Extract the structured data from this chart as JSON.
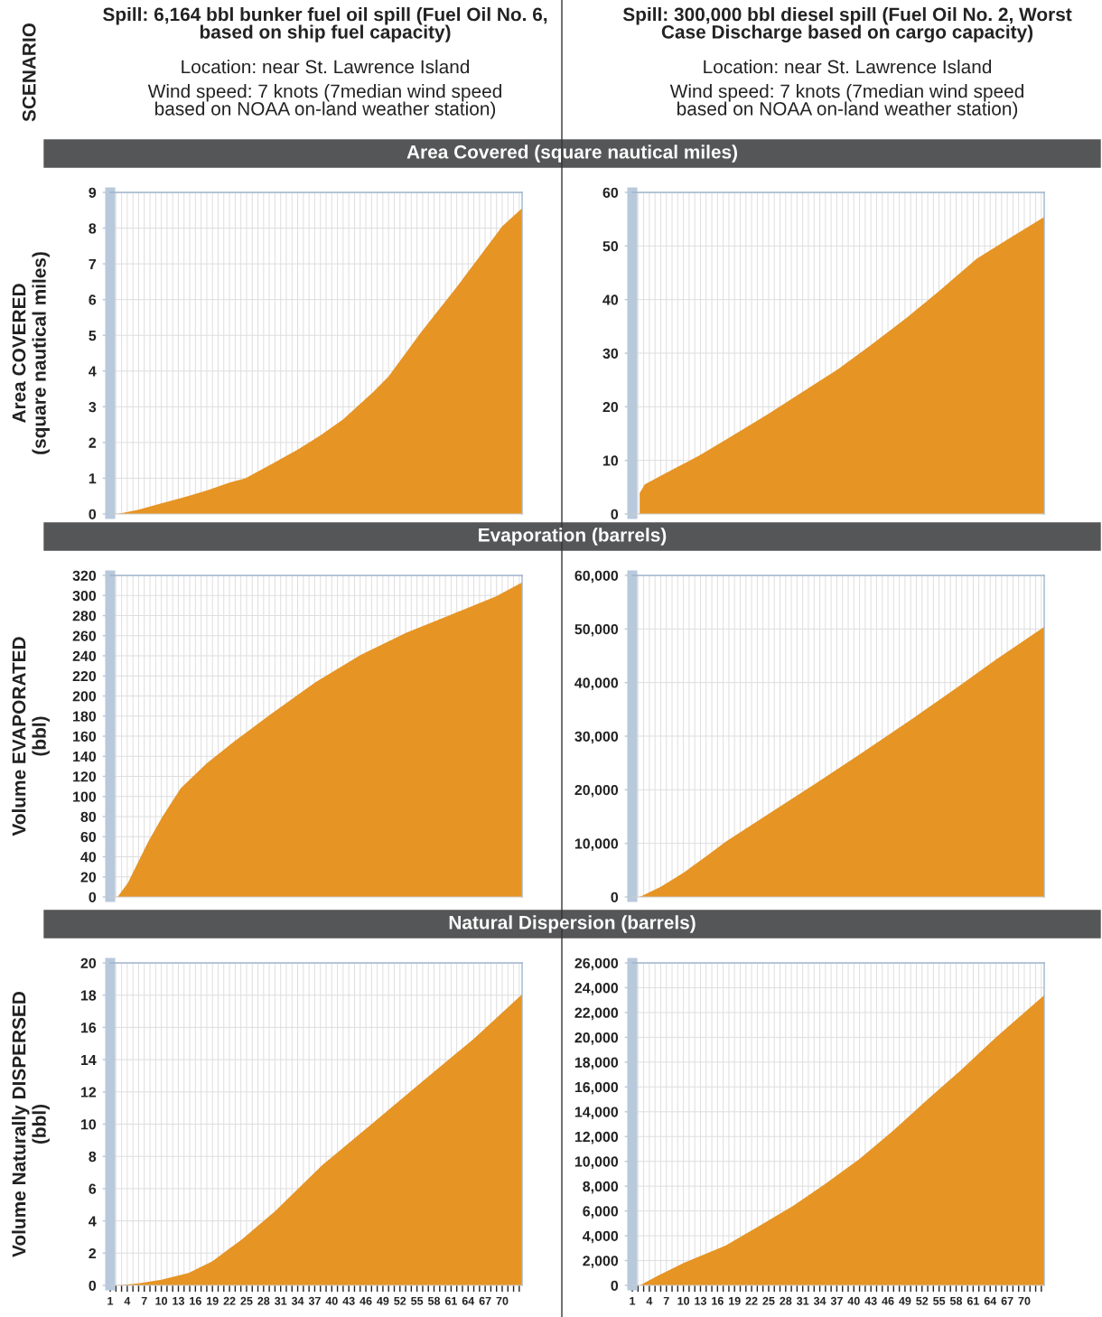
{
  "chart_data": [
    {
      "type": "area",
      "title": "Area Covered (square nautical miles)",
      "subtitle": "Spill: 6,164 bbl bunker fuel oil spill (Fuel Oil No. 6, based on ship fuel capacity)",
      "annotations": [
        "SCENARIO",
        "Location: near St. Lawrence Island",
        "Wind speed: 7 knots (7median wind speed based on NOAA on-land weather station)"
      ],
      "ylabel": "Area COVERED\n(square nautical miles)",
      "color": "#e69424",
      "x": [
        2.3,
        6,
        10,
        14,
        18,
        22,
        24.8,
        30,
        34,
        38,
        42,
        47.2,
        50,
        55.6,
        58,
        62,
        64,
        66,
        70,
        73.5
      ],
      "values": [
        0,
        0.12,
        0.3,
        0.47,
        0.66,
        0.88,
        1.0,
        1.45,
        1.8,
        2.2,
        2.65,
        3.4,
        3.85,
        5.06,
        5.55,
        6.35,
        6.78,
        7.2,
        8.05,
        8.56
      ],
      "xlim": [
        1,
        73.5
      ],
      "ylim": [
        0,
        9
      ],
      "yticks": [
        0,
        1,
        2,
        3,
        4,
        5,
        6,
        7,
        8,
        9
      ],
      "grid": true,
      "tick_labels": "y",
      "xticks": [
        1,
        {
          "value": 2,
          "label": null
        },
        {
          "value": 3,
          "label": null
        },
        4,
        {
          "value": 5,
          "label": null
        },
        {
          "value": 6,
          "label": null
        },
        7,
        {
          "value": 8,
          "label": null
        },
        {
          "value": 9,
          "label": null
        },
        10,
        {
          "value": 11,
          "label": null
        },
        {
          "value": 12,
          "label": null
        },
        13,
        {
          "value": 14,
          "label": null
        },
        {
          "value": 15,
          "label": null
        },
        16,
        {
          "value": 17,
          "label": null
        },
        {
          "value": 18,
          "label": null
        },
        19,
        {
          "value": 20,
          "label": null
        },
        {
          "value": 21,
          "label": null
        },
        22,
        {
          "value": 23,
          "label": null
        },
        {
          "value": 24,
          "label": null
        },
        25,
        {
          "value": 26,
          "label": null
        },
        {
          "value": 27,
          "label": null
        },
        28,
        {
          "value": 29,
          "label": null
        },
        {
          "value": 30,
          "label": null
        },
        31,
        {
          "value": 32,
          "label": null
        },
        {
          "value": 33,
          "label": null
        },
        34,
        {
          "value": 35,
          "label": null
        },
        {
          "value": 36,
          "label": null
        },
        37,
        {
          "value": 38,
          "label": null
        },
        {
          "value": 39,
          "label": null
        },
        40,
        {
          "value": 41,
          "label": null
        },
        {
          "value": 42,
          "label": null
        },
        43,
        {
          "value": 44,
          "label": null
        },
        {
          "value": 45,
          "label": null
        },
        46,
        {
          "value": 47,
          "label": null
        },
        {
          "value": 48,
          "label": null
        },
        49,
        {
          "value": 50,
          "label": null
        },
        {
          "value": 51,
          "label": null
        },
        52,
        {
          "value": 53,
          "label": null
        },
        {
          "value": 54,
          "label": null
        },
        55,
        {
          "value": 56,
          "label": null
        },
        {
          "value": 57,
          "label": null
        },
        58,
        {
          "value": 59,
          "label": null
        },
        {
          "value": 60,
          "label": null
        },
        61,
        {
          "value": 62,
          "label": null
        },
        {
          "value": 63,
          "label": null
        },
        64,
        {
          "value": 65,
          "label": null
        },
        {
          "value": 66,
          "label": null
        },
        67,
        {
          "value": 68,
          "label": null
        },
        {
          "value": 69,
          "label": null
        },
        70,
        {
          "value": 71,
          "label": null
        },
        {
          "value": 72,
          "label": null
        },
        {
          "value": 73,
          "label": null
        }
      ]
    },
    {
      "type": "area",
      "subtitle": "Spill: 300,000 bbl diesel spill (Fuel Oil No. 2, Worst Case Discharge based on cargo capacity)",
      "annotations": [
        "Location: near St. Lawrence Island",
        "Wind speed: 7 knots (7median wind speed based on NOAA on-land weather station)"
      ],
      "color": "#e69424",
      "x": [
        2.3,
        3.2,
        6,
        9,
        12.8,
        18,
        25,
        31,
        37.2,
        43,
        49.4,
        55,
        61.6,
        67,
        73.5
      ],
      "values": [
        3.9,
        5.5,
        7.1,
        8.8,
        10.9,
        14.2,
        18.7,
        22.8,
        27.0,
        31.5,
        36.7,
        41.6,
        47.6,
        51.2,
        55.4
      ],
      "xlim": [
        1,
        73.5
      ],
      "ylim": [
        0,
        60
      ],
      "yticks": [
        0,
        10,
        20,
        30,
        40,
        50,
        60
      ],
      "grid": true,
      "tick_labels": "y",
      "xticks": [
        1,
        {
          "value": 2,
          "label": null
        },
        {
          "value": 3,
          "label": null
        },
        4,
        {
          "value": 5,
          "label": null
        },
        {
          "value": 6,
          "label": null
        },
        7,
        {
          "value": 8,
          "label": null
        },
        {
          "value": 9,
          "label": null
        },
        10,
        {
          "value": 11,
          "label": null
        },
        {
          "value": 12,
          "label": null
        },
        13,
        {
          "value": 14,
          "label": null
        },
        {
          "value": 15,
          "label": null
        },
        16,
        {
          "value": 17,
          "label": null
        },
        {
          "value": 18,
          "label": null
        },
        19,
        {
          "value": 20,
          "label": null
        },
        {
          "value": 21,
          "label": null
        },
        22,
        {
          "value": 23,
          "label": null
        },
        {
          "value": 24,
          "label": null
        },
        25,
        {
          "value": 26,
          "label": null
        },
        {
          "value": 27,
          "label": null
        },
        28,
        {
          "value": 29,
          "label": null
        },
        {
          "value": 30,
          "label": null
        },
        31,
        {
          "value": 32,
          "label": null
        },
        {
          "value": 33,
          "label": null
        },
        34,
        {
          "value": 35,
          "label": null
        },
        {
          "value": 36,
          "label": null
        },
        37,
        {
          "value": 38,
          "label": null
        },
        {
          "value": 39,
          "label": null
        },
        40,
        {
          "value": 41,
          "label": null
        },
        {
          "value": 42,
          "label": null
        },
        43,
        {
          "value": 44,
          "label": null
        },
        {
          "value": 45,
          "label": null
        },
        46,
        {
          "value": 47,
          "label": null
        },
        {
          "value": 48,
          "label": null
        },
        49,
        {
          "value": 50,
          "label": null
        },
        {
          "value": 51,
          "label": null
        },
        52,
        {
          "value": 53,
          "label": null
        },
        {
          "value": 54,
          "label": null
        },
        55,
        {
          "value": 56,
          "label": null
        },
        {
          "value": 57,
          "label": null
        },
        58,
        {
          "value": 59,
          "label": null
        },
        {
          "value": 60,
          "label": null
        },
        61,
        {
          "value": 62,
          "label": null
        },
        {
          "value": 63,
          "label": null
        },
        64,
        {
          "value": 65,
          "label": null
        },
        {
          "value": 66,
          "label": null
        },
        67,
        {
          "value": 68,
          "label": null
        },
        {
          "value": 69,
          "label": null
        },
        70,
        {
          "value": 71,
          "label": null
        },
        {
          "value": 72,
          "label": null
        },
        {
          "value": 73,
          "label": null
        }
      ]
    },
    {
      "type": "area",
      "title": "Evaporation (barrels)",
      "ylabel": "Volume EVAPORATED\n(bbl)",
      "color": "#e69424",
      "x": [
        2.3,
        4.1,
        7.7,
        10.2,
        13.4,
        18,
        22.9,
        29.3,
        37.2,
        45.1,
        53.1,
        61,
        68.9,
        73.5
      ],
      "values": [
        0,
        14,
        55,
        80,
        108,
        133,
        155,
        182,
        214,
        241,
        263,
        281,
        299,
        313
      ],
      "xlim": [
        1,
        73.5
      ],
      "ylim": [
        0,
        320
      ],
      "yticks": [
        0,
        20,
        40,
        60,
        80,
        100,
        120,
        140,
        160,
        180,
        200,
        220,
        240,
        260,
        280,
        300,
        320
      ],
      "grid": true,
      "tick_labels": "y",
      "xticks": [
        1,
        {
          "value": 2,
          "label": null
        },
        {
          "value": 3,
          "label": null
        },
        4,
        {
          "value": 5,
          "label": null
        },
        {
          "value": 6,
          "label": null
        },
        7,
        {
          "value": 8,
          "label": null
        },
        {
          "value": 9,
          "label": null
        },
        10,
        {
          "value": 11,
          "label": null
        },
        {
          "value": 12,
          "label": null
        },
        13,
        {
          "value": 14,
          "label": null
        },
        {
          "value": 15,
          "label": null
        },
        16,
        {
          "value": 17,
          "label": null
        },
        {
          "value": 18,
          "label": null
        },
        19,
        {
          "value": 20,
          "label": null
        },
        {
          "value": 21,
          "label": null
        },
        22,
        {
          "value": 23,
          "label": null
        },
        {
          "value": 24,
          "label": null
        },
        25,
        {
          "value": 26,
          "label": null
        },
        {
          "value": 27,
          "label": null
        },
        28,
        {
          "value": 29,
          "label": null
        },
        {
          "value": 30,
          "label": null
        },
        31,
        {
          "value": 32,
          "label": null
        },
        {
          "value": 33,
          "label": null
        },
        34,
        {
          "value": 35,
          "label": null
        },
        {
          "value": 36,
          "label": null
        },
        37,
        {
          "value": 38,
          "label": null
        },
        {
          "value": 39,
          "label": null
        },
        40,
        {
          "value": 41,
          "label": null
        },
        {
          "value": 42,
          "label": null
        },
        43,
        {
          "value": 44,
          "label": null
        },
        {
          "value": 45,
          "label": null
        },
        46,
        {
          "value": 47,
          "label": null
        },
        {
          "value": 48,
          "label": null
        },
        49,
        {
          "value": 50,
          "label": null
        },
        {
          "value": 51,
          "label": null
        },
        52,
        {
          "value": 53,
          "label": null
        },
        {
          "value": 54,
          "label": null
        },
        55,
        {
          "value": 56,
          "label": null
        },
        {
          "value": 57,
          "label": null
        },
        58,
        {
          "value": 59,
          "label": null
        },
        {
          "value": 60,
          "label": null
        },
        61,
        {
          "value": 62,
          "label": null
        },
        {
          "value": 63,
          "label": null
        },
        64,
        {
          "value": 65,
          "label": null
        },
        {
          "value": 66,
          "label": null
        },
        67,
        {
          "value": 68,
          "label": null
        },
        {
          "value": 69,
          "label": null
        },
        70,
        {
          "value": 71,
          "label": null
        },
        {
          "value": 72,
          "label": null
        },
        {
          "value": 73,
          "label": null
        }
      ]
    },
    {
      "type": "area",
      "color": "#e69424",
      "x": [
        2.3,
        6,
        10,
        14,
        17.4,
        25,
        33,
        41,
        49,
        57,
        65,
        73.5
      ],
      "values": [
        0,
        1900,
        4500,
        7600,
        10300,
        15500,
        21000,
        26600,
        32300,
        38200,
        44300,
        50400
      ],
      "xlim": [
        1,
        73.5
      ],
      "ylim": [
        0,
        60000
      ],
      "yticks": [
        0,
        {
          "value": 10000,
          "label": "10,000"
        },
        {
          "value": 20000,
          "label": "20,000"
        },
        {
          "value": 30000,
          "label": "30,000"
        },
        {
          "value": 40000,
          "label": "40,000"
        },
        {
          "value": 50000,
          "label": "50,000"
        },
        {
          "value": 60000,
          "label": "60,000"
        }
      ],
      "grid": true,
      "tick_labels": "y",
      "xticks": [
        1,
        {
          "value": 2,
          "label": null
        },
        {
          "value": 3,
          "label": null
        },
        4,
        {
          "value": 5,
          "label": null
        },
        {
          "value": 6,
          "label": null
        },
        7,
        {
          "value": 8,
          "label": null
        },
        {
          "value": 9,
          "label": null
        },
        10,
        {
          "value": 11,
          "label": null
        },
        {
          "value": 12,
          "label": null
        },
        13,
        {
          "value": 14,
          "label": null
        },
        {
          "value": 15,
          "label": null
        },
        16,
        {
          "value": 17,
          "label": null
        },
        {
          "value": 18,
          "label": null
        },
        19,
        {
          "value": 20,
          "label": null
        },
        {
          "value": 21,
          "label": null
        },
        22,
        {
          "value": 23,
          "label": null
        },
        {
          "value": 24,
          "label": null
        },
        25,
        {
          "value": 26,
          "label": null
        },
        {
          "value": 27,
          "label": null
        },
        28,
        {
          "value": 29,
          "label": null
        },
        {
          "value": 30,
          "label": null
        },
        31,
        {
          "value": 32,
          "label": null
        },
        {
          "value": 33,
          "label": null
        },
        34,
        {
          "value": 35,
          "label": null
        },
        {
          "value": 36,
          "label": null
        },
        37,
        {
          "value": 38,
          "label": null
        },
        {
          "value": 39,
          "label": null
        },
        40,
        {
          "value": 41,
          "label": null
        },
        {
          "value": 42,
          "label": null
        },
        43,
        {
          "value": 44,
          "label": null
        },
        {
          "value": 45,
          "label": null
        },
        46,
        {
          "value": 47,
          "label": null
        },
        {
          "value": 48,
          "label": null
        },
        49,
        {
          "value": 50,
          "label": null
        },
        {
          "value": 51,
          "label": null
        },
        52,
        {
          "value": 53,
          "label": null
        },
        {
          "value": 54,
          "label": null
        },
        55,
        {
          "value": 56,
          "label": null
        },
        {
          "value": 57,
          "label": null
        },
        58,
        {
          "value": 59,
          "label": null
        },
        {
          "value": 60,
          "label": null
        },
        61,
        {
          "value": 62,
          "label": null
        },
        {
          "value": 63,
          "label": null
        },
        64,
        {
          "value": 65,
          "label": null
        },
        {
          "value": 66,
          "label": null
        },
        67,
        {
          "value": 68,
          "label": null
        },
        {
          "value": 69,
          "label": null
        },
        70,
        {
          "value": 71,
          "label": null
        },
        {
          "value": 72,
          "label": null
        },
        {
          "value": 73,
          "label": null
        }
      ]
    },
    {
      "type": "area",
      "title": "Natural Dispersion (barrels)",
      "ylabel": "Volume Naturally DISPERSED\n(bbl)",
      "color": "#e69424",
      "x": [
        2.3,
        6,
        10,
        14.8,
        19,
        24.2,
        30,
        38.3,
        47,
        56,
        65,
        73.5
      ],
      "values": [
        0,
        0.12,
        0.35,
        0.77,
        1.5,
        2.86,
        4.6,
        7.45,
        10.0,
        12.66,
        15.3,
        18.05
      ],
      "xlim": [
        1,
        73.5
      ],
      "ylim": [
        0,
        20
      ],
      "yticks": [
        0,
        2,
        4,
        6,
        8,
        10,
        12,
        14,
        16,
        18,
        20
      ],
      "grid": true,
      "xticks": [
        1,
        {
          "value": 2,
          "label": null
        },
        {
          "value": 3,
          "label": null
        },
        4,
        {
          "value": 5,
          "label": null
        },
        {
          "value": 6,
          "label": null
        },
        7,
        {
          "value": 8,
          "label": null
        },
        {
          "value": 9,
          "label": null
        },
        10,
        {
          "value": 11,
          "label": null
        },
        {
          "value": 12,
          "label": null
        },
        13,
        {
          "value": 14,
          "label": null
        },
        {
          "value": 15,
          "label": null
        },
        16,
        {
          "value": 17,
          "label": null
        },
        {
          "value": 18,
          "label": null
        },
        19,
        {
          "value": 20,
          "label": null
        },
        {
          "value": 21,
          "label": null
        },
        22,
        {
          "value": 23,
          "label": null
        },
        {
          "value": 24,
          "label": null
        },
        25,
        {
          "value": 26,
          "label": null
        },
        {
          "value": 27,
          "label": null
        },
        28,
        {
          "value": 29,
          "label": null
        },
        {
          "value": 30,
          "label": null
        },
        31,
        {
          "value": 32,
          "label": null
        },
        {
          "value": 33,
          "label": null
        },
        34,
        {
          "value": 35,
          "label": null
        },
        {
          "value": 36,
          "label": null
        },
        37,
        {
          "value": 38,
          "label": null
        },
        {
          "value": 39,
          "label": null
        },
        40,
        {
          "value": 41,
          "label": null
        },
        {
          "value": 42,
          "label": null
        },
        43,
        {
          "value": 44,
          "label": null
        },
        {
          "value": 45,
          "label": null
        },
        46,
        {
          "value": 47,
          "label": null
        },
        {
          "value": 48,
          "label": null
        },
        49,
        {
          "value": 50,
          "label": null
        },
        {
          "value": 51,
          "label": null
        },
        52,
        {
          "value": 53,
          "label": null
        },
        {
          "value": 54,
          "label": null
        },
        55,
        {
          "value": 56,
          "label": null
        },
        {
          "value": 57,
          "label": null
        },
        58,
        {
          "value": 59,
          "label": null
        },
        {
          "value": 60,
          "label": null
        },
        61,
        {
          "value": 62,
          "label": null
        },
        {
          "value": 63,
          "label": null
        },
        64,
        {
          "value": 65,
          "label": null
        },
        {
          "value": 66,
          "label": null
        },
        67,
        {
          "value": 68,
          "label": null
        },
        {
          "value": 69,
          "label": null
        },
        70,
        {
          "value": 71,
          "label": null
        },
        {
          "value": 72,
          "label": null
        },
        {
          "value": 73,
          "label": null
        }
      ]
    },
    {
      "type": "area",
      "color": "#e69424",
      "x": [
        2.3,
        5.6,
        10,
        17.4,
        23,
        29.3,
        35,
        41,
        47,
        53,
        58.7,
        65,
        73.5
      ],
      "values": [
        0,
        800,
        1800,
        3200,
        4700,
        6400,
        8200,
        10200,
        12500,
        15000,
        17300,
        20000,
        23400
      ],
      "xlim": [
        1,
        73.5
      ],
      "ylim": [
        0,
        26000
      ],
      "yticks": [
        0,
        {
          "value": 2000,
          "label": "2,000"
        },
        {
          "value": 4000,
          "label": "4,000"
        },
        {
          "value": 6000,
          "label": "6,000"
        },
        {
          "value": 8000,
          "label": "8,000"
        },
        {
          "value": 10000,
          "label": "10,000"
        },
        {
          "value": 12000,
          "label": "12,000"
        },
        {
          "value": 14000,
          "label": "14,000"
        },
        {
          "value": 16000,
          "label": "16,000"
        },
        {
          "value": 18000,
          "label": "18,000"
        },
        {
          "value": 20000,
          "label": "20,000"
        },
        {
          "value": 22000,
          "label": "22,000"
        },
        {
          "value": 24000,
          "label": "24,000"
        },
        {
          "value": 26000,
          "label": "26,000"
        }
      ],
      "grid": true,
      "xticks": [
        1,
        {
          "value": 2,
          "label": null
        },
        {
          "value": 3,
          "label": null
        },
        4,
        {
          "value": 5,
          "label": null
        },
        {
          "value": 6,
          "label": null
        },
        7,
        {
          "value": 8,
          "label": null
        },
        {
          "value": 9,
          "label": null
        },
        10,
        {
          "value": 11,
          "label": null
        },
        {
          "value": 12,
          "label": null
        },
        13,
        {
          "value": 14,
          "label": null
        },
        {
          "value": 15,
          "label": null
        },
        16,
        {
          "value": 17,
          "label": null
        },
        {
          "value": 18,
          "label": null
        },
        19,
        {
          "value": 20,
          "label": null
        },
        {
          "value": 21,
          "label": null
        },
        22,
        {
          "value": 23,
          "label": null
        },
        {
          "value": 24,
          "label": null
        },
        25,
        {
          "value": 26,
          "label": null
        },
        {
          "value": 27,
          "label": null
        },
        28,
        {
          "value": 29,
          "label": null
        },
        {
          "value": 30,
          "label": null
        },
        31,
        {
          "value": 32,
          "label": null
        },
        {
          "value": 33,
          "label": null
        },
        34,
        {
          "value": 35,
          "label": null
        },
        {
          "value": 36,
          "label": null
        },
        37,
        {
          "value": 38,
          "label": null
        },
        {
          "value": 39,
          "label": null
        },
        40,
        {
          "value": 41,
          "label": null
        },
        {
          "value": 42,
          "label": null
        },
        43,
        {
          "value": 44,
          "label": null
        },
        {
          "value": 45,
          "label": null
        },
        46,
        {
          "value": 47,
          "label": null
        },
        {
          "value": 48,
          "label": null
        },
        49,
        {
          "value": 50,
          "label": null
        },
        {
          "value": 51,
          "label": null
        },
        52,
        {
          "value": 53,
          "label": null
        },
        {
          "value": 54,
          "label": null
        },
        55,
        {
          "value": 56,
          "label": null
        },
        {
          "value": 57,
          "label": null
        },
        58,
        {
          "value": 59,
          "label": null
        },
        {
          "value": 60,
          "label": null
        },
        61,
        {
          "value": 62,
          "label": null
        },
        {
          "value": 63,
          "label": null
        },
        64,
        {
          "value": 65,
          "label": null
        },
        {
          "value": 66,
          "label": null
        },
        67,
        {
          "value": 68,
          "label": null
        },
        {
          "value": 69,
          "label": null
        },
        70,
        {
          "value": 71,
          "label": null
        },
        {
          "value": 72,
          "label": null
        },
        {
          "value": 73,
          "label": null
        }
      ]
    }
  ]
}
